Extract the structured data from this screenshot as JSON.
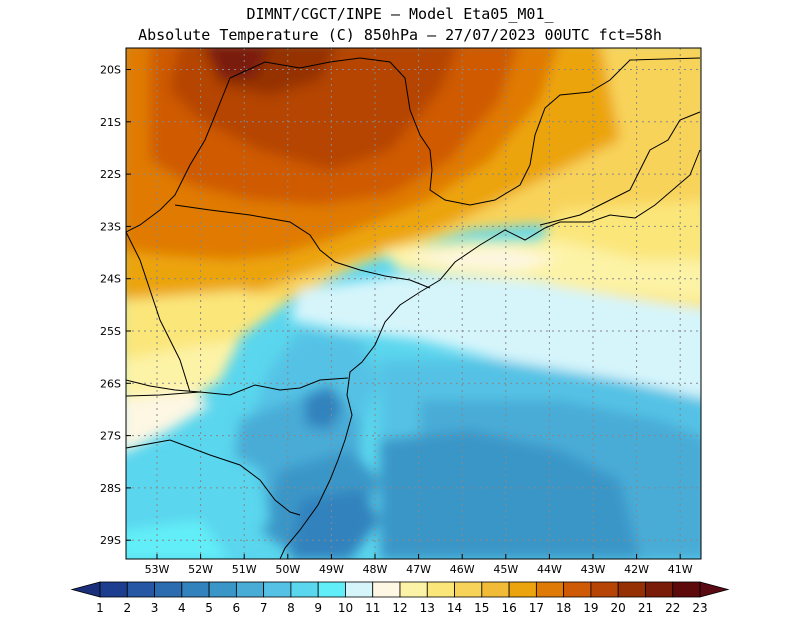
{
  "title": {
    "line1": "DIMNT/CGCT/INPE –  Model Eta05_M01_",
    "line2": "Absolute Temperature (C) 850hPa –  27/07/2023 00UTC fct=58h"
  },
  "map": {
    "region": "Southern and southeastern Brazil",
    "lat_labels": [
      "20S",
      "21S",
      "22S",
      "23S",
      "24S",
      "25S",
      "26S",
      "27S",
      "28S",
      "29S"
    ],
    "lat_values": [
      -20,
      -21,
      -22,
      -23,
      -24,
      -25,
      -26,
      -27,
      -28,
      -29
    ],
    "lon_labels": [
      "53W",
      "52W",
      "51W",
      "50W",
      "49W",
      "48W",
      "47W",
      "46W",
      "45W",
      "44W",
      "43W",
      "42W",
      "41W"
    ],
    "lon_values": [
      -53,
      -52,
      -51,
      -50,
      -49,
      -48,
      -47,
      -46,
      -45,
      -44,
      -43,
      -42,
      -41
    ]
  },
  "colorbar": {
    "labels": [
      "1",
      "2",
      "3",
      "4",
      "5",
      "6",
      "7",
      "8",
      "9",
      "10",
      "11",
      "12",
      "13",
      "14",
      "15",
      "16",
      "17",
      "18",
      "19",
      "20",
      "21",
      "22",
      "23"
    ],
    "colors": [
      "#1d3d8f",
      "#2557a4",
      "#2b6cb0",
      "#3282bd",
      "#3b96c8",
      "#48acd7",
      "#55c2e5",
      "#5ad6ee",
      "#62eef8",
      "#d6f5fb",
      "#fdf7e3",
      "#fdf3a6",
      "#fbe67a",
      "#f8d35a",
      "#f2bb37",
      "#eca40e",
      "#e07a06",
      "#cf5a05",
      "#b54405",
      "#953005",
      "#7a1d08",
      "#5e0a0a"
    ],
    "under_color": "#1a2f7a",
    "over_color": "#5a0a12"
  }
}
